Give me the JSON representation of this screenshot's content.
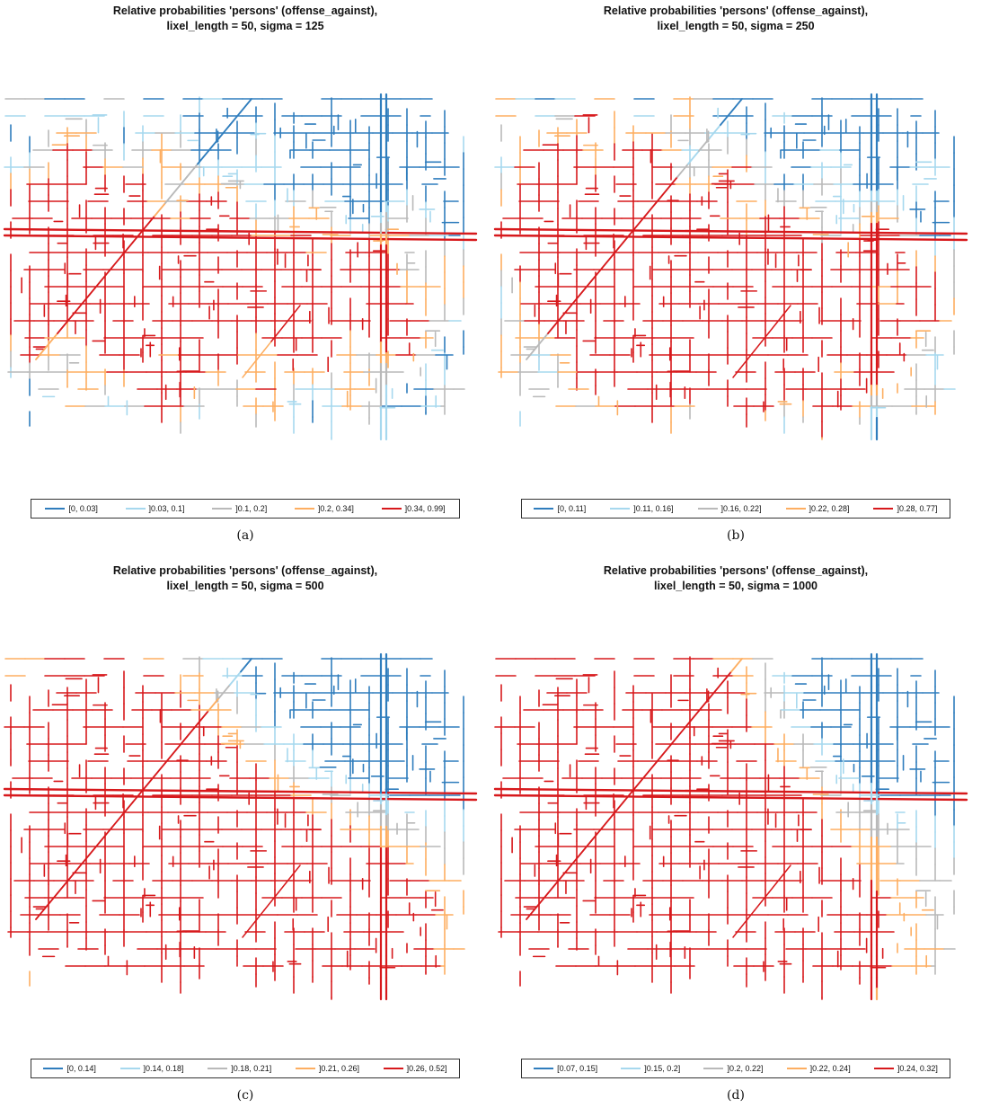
{
  "palette": {
    "class1": "#2f7dbd",
    "class2": "#a6d8ee",
    "class3": "#b9b9b9",
    "class4": "#fdae61",
    "class5": "#d7191c"
  },
  "panels": [
    {
      "title_line1": "Relative probabilities 'persons' (offense_against),",
      "title_line2": "lixel_length = 50, sigma = 125",
      "caption": "(a)",
      "legend": [
        "[0, 0.03]",
        "]0.03, 0.1]",
        "]0.1, 0.2]",
        "]0.2, 0.34]",
        "]0.34, 0.99]"
      ]
    },
    {
      "title_line1": "Relative probabilities 'persons' (offense_against),",
      "title_line2": "lixel_length = 50, sigma = 250",
      "caption": "(b)",
      "legend": [
        "[0, 0.11]",
        "]0.11, 0.16]",
        "]0.16, 0.22]",
        "]0.22, 0.28]",
        "]0.28, 0.77]"
      ]
    },
    {
      "title_line1": "Relative probabilities 'persons' (offense_against),",
      "title_line2": "lixel_length = 50, sigma = 500",
      "caption": "(c)",
      "legend": [
        "[0, 0.14]",
        "]0.14, 0.18]",
        "]0.18, 0.21]",
        "]0.21, 0.26]",
        "]0.26, 0.52]"
      ]
    },
    {
      "title_line1": "Relative probabilities 'persons' (offense_against),",
      "title_line2": "lixel_length = 50, sigma = 1000",
      "caption": "(d)",
      "legend": [
        "[0.07, 0.15]",
        "]0.15, 0.2]",
        "]0.2, 0.22]",
        "]0.22, 0.24]",
        "]0.24, 0.32]"
      ]
    }
  ]
}
